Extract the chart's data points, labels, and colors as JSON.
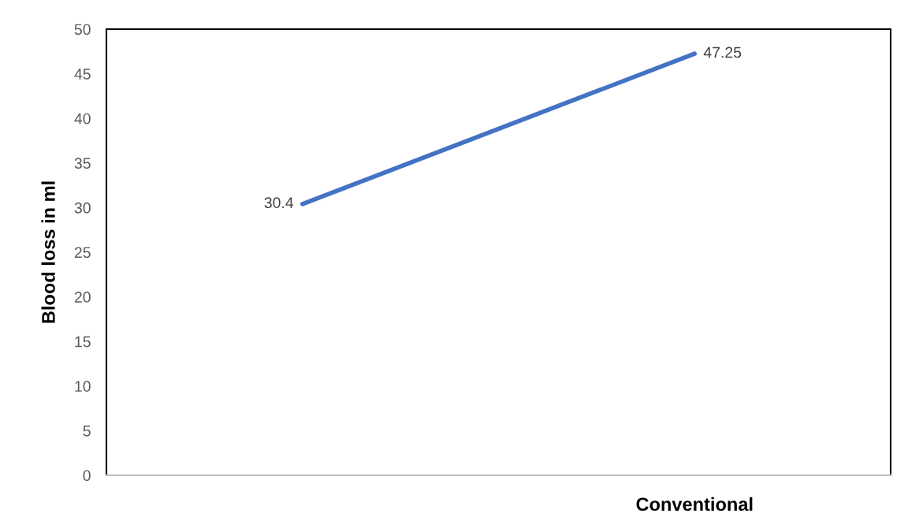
{
  "chart_data": {
    "type": "line",
    "ylabel": "Blood loss in ml",
    "categories": [
      null,
      "Conventional"
    ],
    "series": [
      {
        "color": "#4472c4",
        "values": [
          30.4,
          47.25
        ]
      }
    ],
    "ylim": [
      0,
      50
    ],
    "yticks": [
      0,
      5,
      10,
      15,
      20,
      25,
      30,
      35,
      40,
      45,
      50
    ],
    "data_labels": true,
    "grid": false,
    "legend": false,
    "marker": "none",
    "line_style": "solid"
  }
}
